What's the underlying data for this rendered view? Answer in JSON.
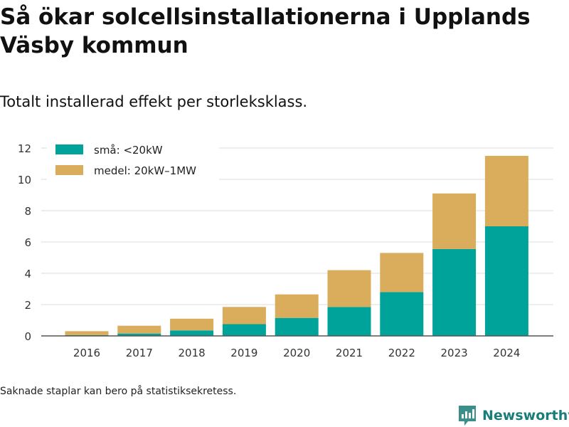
{
  "title": "Så ökar solcellsinstallationerna i Upplands Väsby kommun",
  "subtitle": "Totalt installerad effekt per storleksklass.",
  "footnote": "Saknade staplar kan bero på statistiksekretess.",
  "brand": {
    "name": "Newsworthy",
    "icon": "newsworthy-logo-icon",
    "color": "#1a7d78"
  },
  "chart_data": {
    "type": "bar",
    "stacked": true,
    "categories": [
      "2016",
      "2017",
      "2018",
      "2019",
      "2020",
      "2021",
      "2022",
      "2023",
      "2024"
    ],
    "series": [
      {
        "name": "små: <20kW",
        "color": "#00a39a",
        "values": [
          0.05,
          0.15,
          0.35,
          0.75,
          1.15,
          1.85,
          2.8,
          5.55,
          7.0
        ]
      },
      {
        "name": "medel: 20kW–1MW",
        "color": "#d9ad5b",
        "values": [
          0.25,
          0.5,
          0.75,
          1.1,
          1.5,
          2.35,
          2.5,
          3.55,
          4.5
        ]
      }
    ],
    "yticks": [
      0,
      2,
      4,
      6,
      8,
      10,
      12
    ],
    "ylim": [
      0,
      12
    ],
    "grid": true,
    "legend": "top-left",
    "xlabel": "",
    "ylabel": ""
  }
}
